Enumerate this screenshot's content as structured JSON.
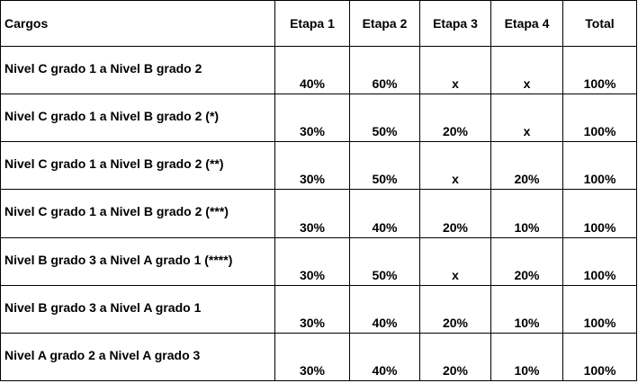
{
  "table": {
    "headers": [
      "Cargos",
      "Etapa 1",
      "Etapa 2",
      "Etapa 3",
      "Etapa 4",
      "Total"
    ],
    "rows": [
      [
        "Nivel C grado 1 a Nivel B grado 2",
        "40%",
        "60%",
        "x",
        "x",
        "100%"
      ],
      [
        "Nivel C grado 1 a Nivel B grado 2 (*)",
        "30%",
        "50%",
        "20%",
        "x",
        "100%"
      ],
      [
        "Nivel C grado 1 a Nivel B grado 2 (**)",
        "30%",
        "50%",
        "x",
        "20%",
        "100%"
      ],
      [
        "Nivel C grado 1 a Nivel B grado 2 (***)",
        "30%",
        "40%",
        "20%",
        "10%",
        "100%"
      ],
      [
        "Nivel B grado 3 a Nivel A grado 1 (****)",
        "30%",
        "50%",
        "x",
        "20%",
        "100%"
      ],
      [
        "Nivel B grado 3 a Nivel A grado 1",
        "30%",
        "40%",
        "20%",
        "10%",
        "100%"
      ],
      [
        "Nivel A grado 2 a Nivel A grado 3",
        "30%",
        "40%",
        "20%",
        "10%",
        "100%"
      ]
    ]
  }
}
